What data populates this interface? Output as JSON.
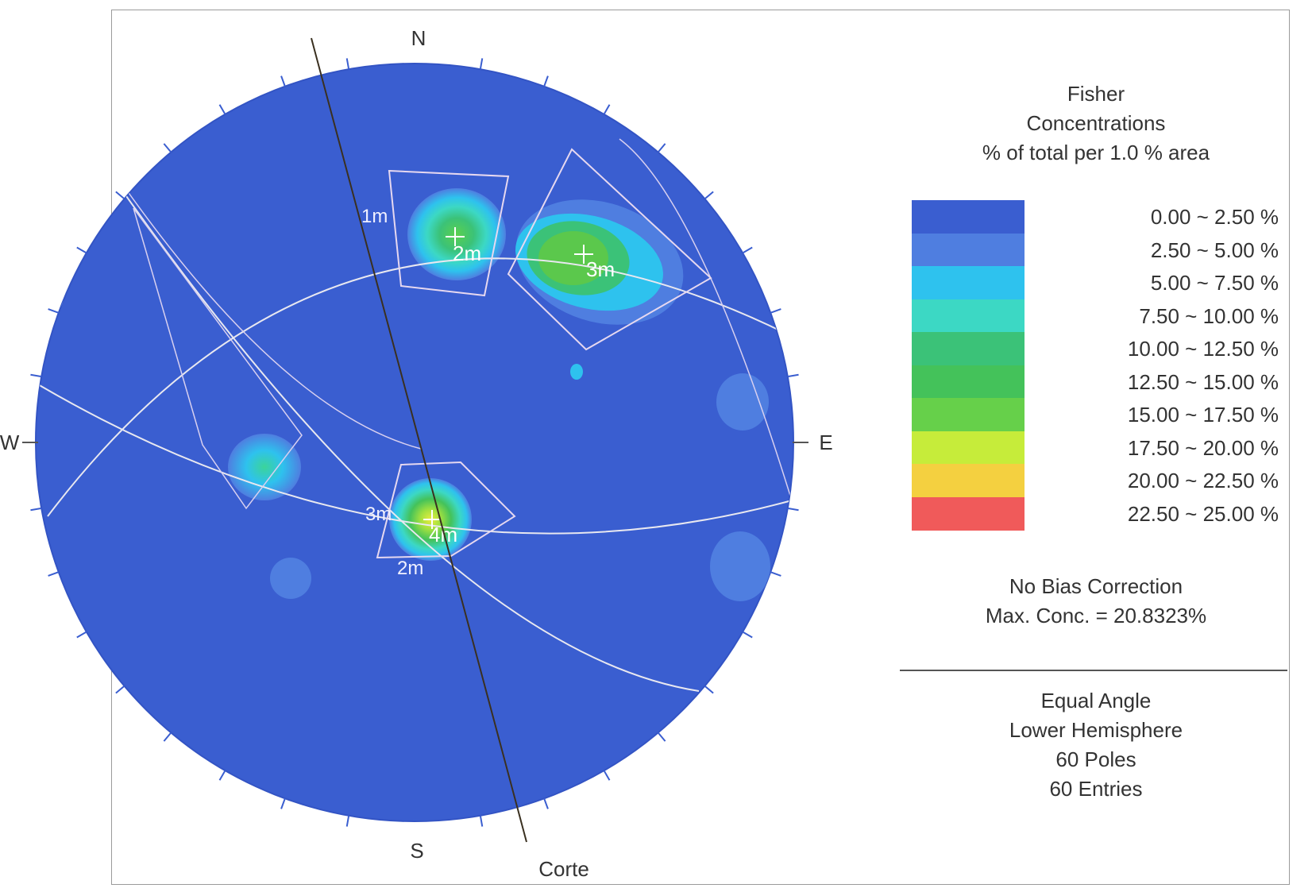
{
  "net": {
    "north": "N",
    "south": "S",
    "east": "E",
    "west": "W",
    "line_label": "Corte",
    "set_labels": [
      "1m",
      "2m",
      "3m",
      "3m",
      "4m",
      "2m"
    ]
  },
  "legend": {
    "title_lines": [
      "Fisher",
      "Concentrations",
      "% of total per 1.0 % area"
    ],
    "bins": [
      {
        "range": "0.00 ~ 2.50 %",
        "color": "#3a5ed0"
      },
      {
        "range": "2.50 ~ 5.00 %",
        "color": "#4f7ee0"
      },
      {
        "range": "5.00 ~ 7.50 %",
        "color": "#2ec2ee"
      },
      {
        "range": "7.50 ~ 10.00 %",
        "color": "#3cd8c4"
      },
      {
        "range": "10.00 ~ 12.50 %",
        "color": "#3bc278"
      },
      {
        "range": "12.50 ~ 15.00 %",
        "color": "#44c25a"
      },
      {
        "range": "15.00 ~ 17.50 %",
        "color": "#66d04a"
      },
      {
        "range": "17.50 ~ 20.00 %",
        "color": "#c6ec3a"
      },
      {
        "range": "20.00 ~ 22.50 %",
        "color": "#f4d040"
      },
      {
        "range": "22.50 ~ 25.00 %",
        "color": "#f05a5a"
      }
    ],
    "bias_line": "No Bias Correction",
    "max_line": "Max. Conc. = 20.8323%",
    "projection": "Equal Angle",
    "hemisphere": "Lower Hemisphere",
    "poles": "60 Poles",
    "entries": "60 Entries"
  }
}
